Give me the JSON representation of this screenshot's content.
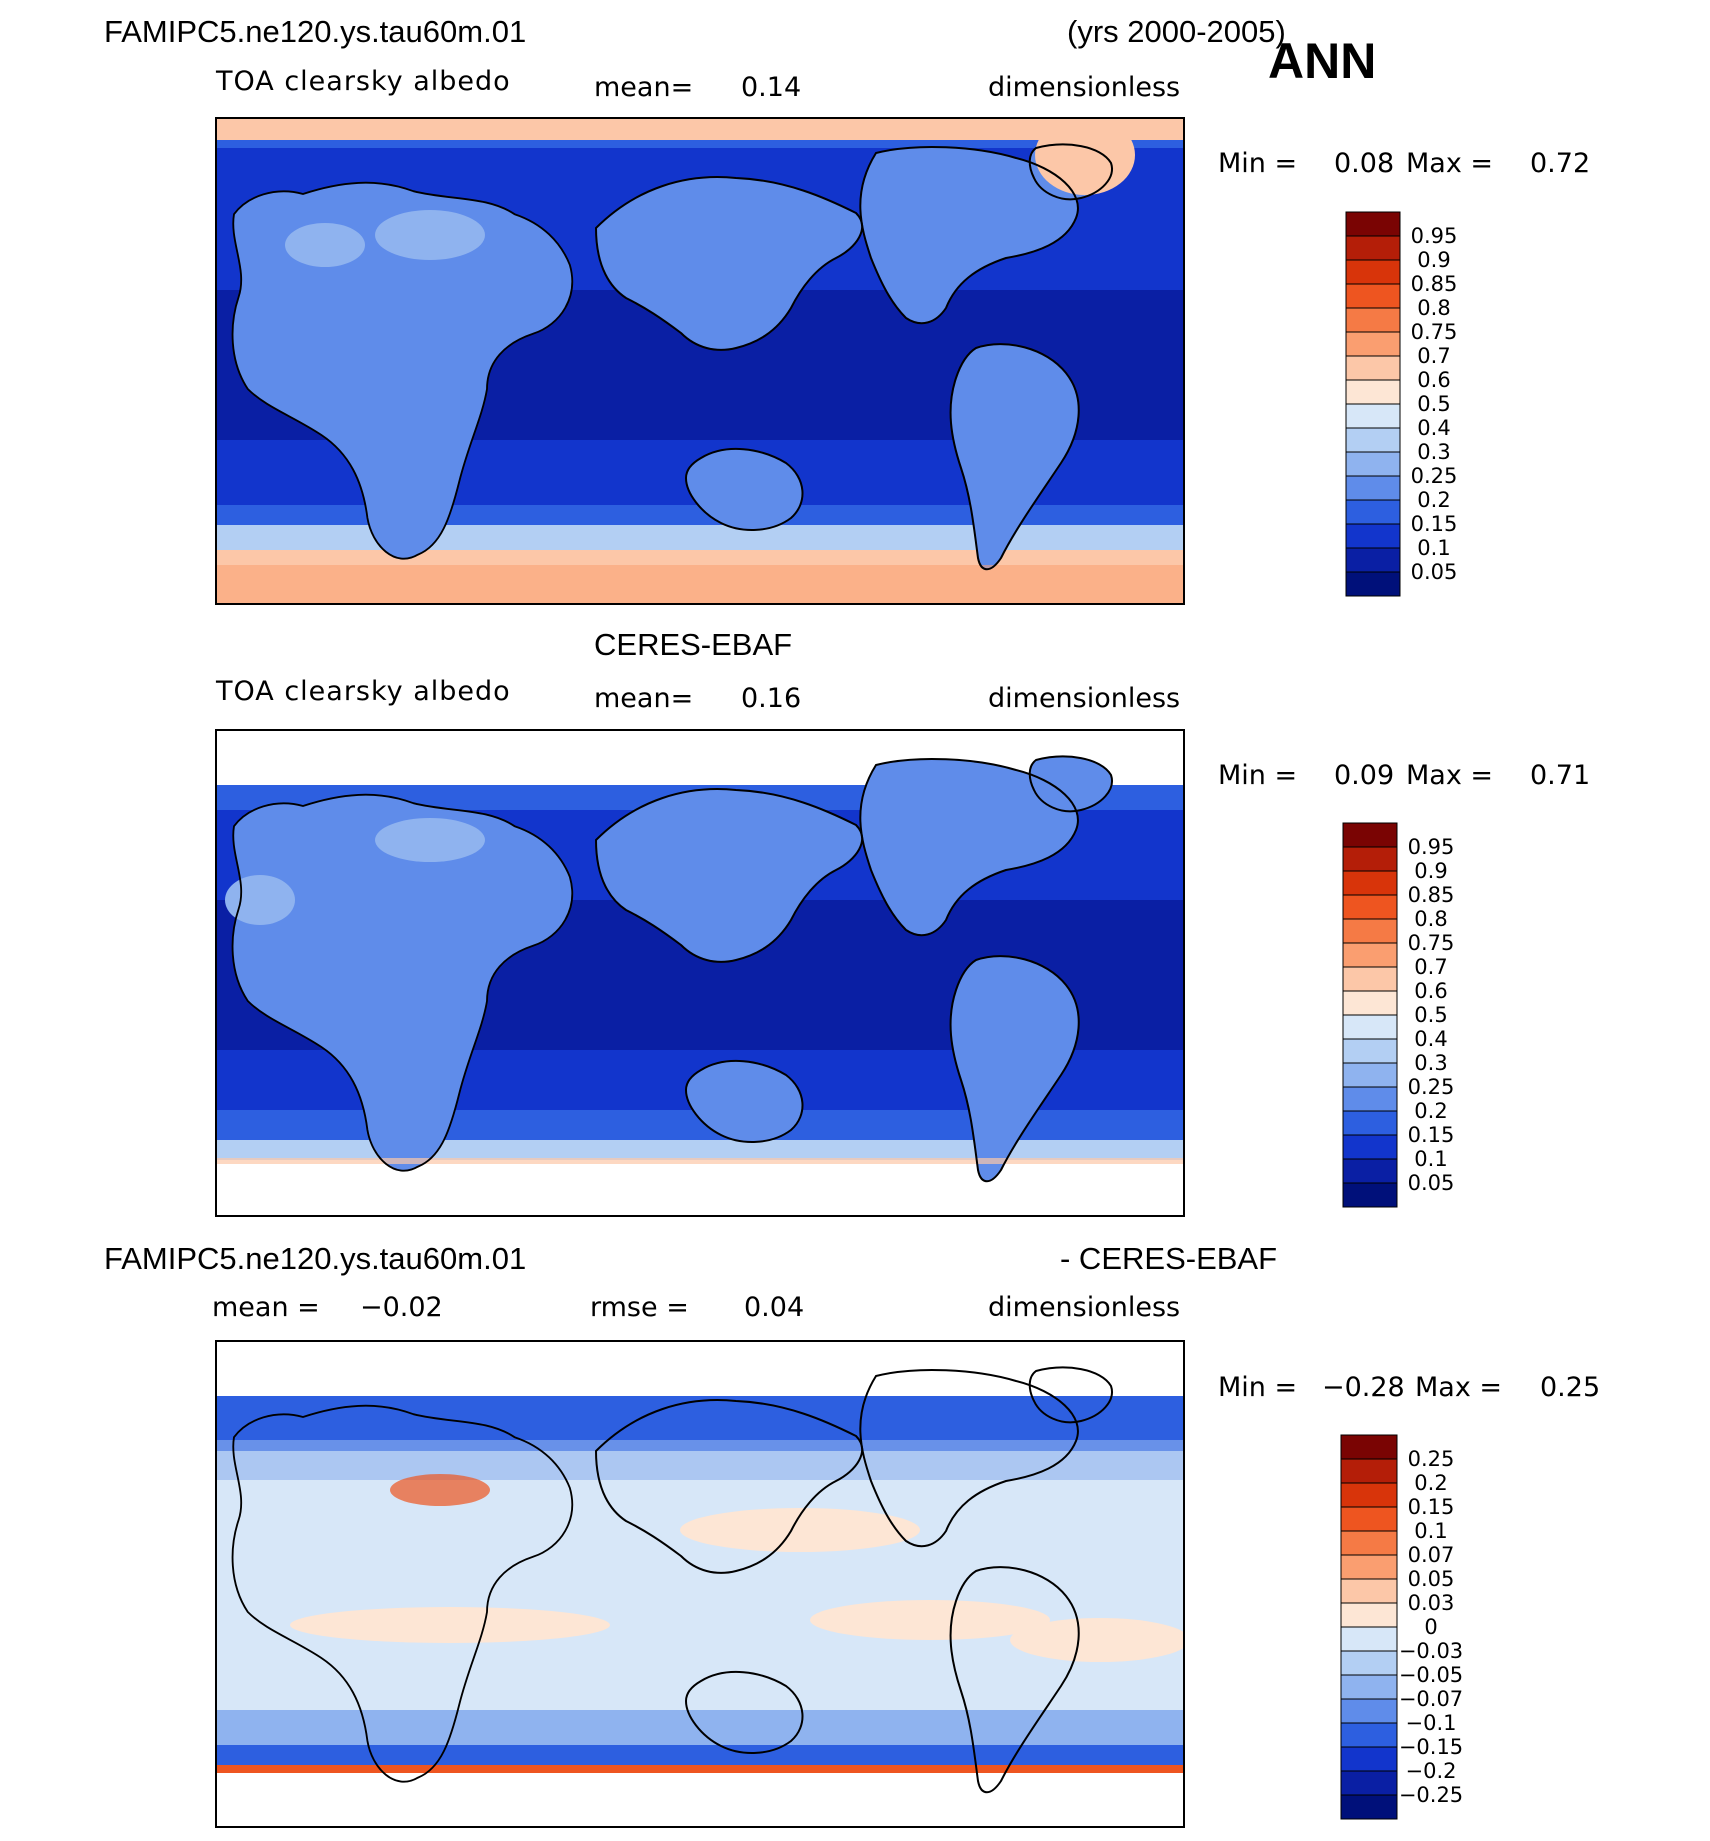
{
  "header": {
    "case_name": "FAMIPC5.ne120.ys.tau60m.01",
    "years": "(yrs 2000-2005)",
    "season": "ANN"
  },
  "panels": [
    {
      "id": "model",
      "title": "",
      "variable": "TOA clearsky albedo",
      "mean_label": "mean=",
      "mean_value": "0.14",
      "units": "dimensionless",
      "min_label": "Min =",
      "min_value": "0.08",
      "max_label": "Max =",
      "max_value": "0.72"
    },
    {
      "id": "obs",
      "title": "CERES-EBAF",
      "variable": "TOA clearsky albedo",
      "mean_label": "mean=",
      "mean_value": "0.16",
      "units": "dimensionless",
      "min_label": "Min =",
      "min_value": "0.09",
      "max_label": "Max =",
      "max_value": "0.71"
    },
    {
      "id": "diff",
      "title_left": "FAMIPC5.ne120.ys.tau60m.01",
      "title_right": "- CERES-EBAF",
      "mean_label": "mean =",
      "mean_value": "−0.02",
      "rmse_label": "rmse =",
      "rmse_value": "0.04",
      "units": "dimensionless",
      "min_label": "Min =",
      "min_value": "−0.28",
      "max_label": "Max =",
      "max_value": "0.25"
    }
  ],
  "colorbars": {
    "albedo": {
      "labels": [
        "0.95",
        "0.9",
        "0.85",
        "0.8",
        "0.75",
        "0.7",
        "0.6",
        "0.5",
        "0.4",
        "0.3",
        "0.25",
        "0.2",
        "0.15",
        "0.1",
        "0.05"
      ],
      "colors": [
        "#7a0403",
        "#b41e08",
        "#d8340a",
        "#ee5520",
        "#f57a45",
        "#fa9e70",
        "#fcc7a8",
        "#fde6d5",
        "#d7e7f8",
        "#b3cff3",
        "#8fb3ef",
        "#5f8cea",
        "#2d5fe0",
        "#1235cc",
        "#0a1fa4",
        "#00107a"
      ]
    },
    "diff": {
      "labels": [
        "0.25",
        "0.2",
        "0.15",
        "0.1",
        "0.07",
        "0.05",
        "0.03",
        "0",
        "−0.03",
        "−0.05",
        "−0.07",
        "−0.1",
        "−0.15",
        "−0.2",
        "−0.25"
      ],
      "colors": [
        "#7a0403",
        "#b41e08",
        "#d8340a",
        "#ee5520",
        "#f57a45",
        "#fa9e70",
        "#fcc7a8",
        "#fde6d5",
        "#d7e7f8",
        "#b3cff3",
        "#8fb3ef",
        "#5f8cea",
        "#2d5fe0",
        "#1235cc",
        "#0a1fa4",
        "#00107a"
      ]
    }
  },
  "map_colors": {
    "deep_ocean": "#0a1fa4",
    "ocean": "#1235cc",
    "mid_ocean": "#2d5fe0",
    "land": "#5f8cea",
    "light_land": "#8fb3ef",
    "snow": "#b3cff3",
    "ice": "#fcc7a8",
    "ice_dark": "#fa9e70",
    "diff_bg": "#d7e7f8",
    "diff_pos": "#fde6d5",
    "diff_hot": "#ee5520"
  }
}
